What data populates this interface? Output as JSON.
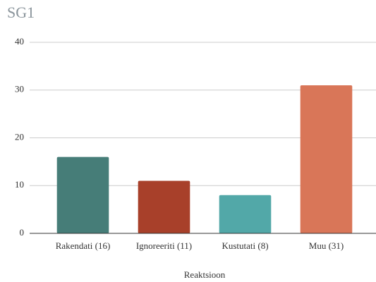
{
  "chart_data": {
    "type": "bar",
    "title": "SG1",
    "x_label": "Reaktsioon",
    "categories": [
      "Rakendati (16)",
      "Ignoreeriti (11)",
      "Kustutati (8)",
      "Muu (31)"
    ],
    "values": [
      16,
      11,
      8,
      31
    ],
    "colors": [
      "#467d78",
      "#a8402a",
      "#52a8a8",
      "#d97658"
    ],
    "ylim": [
      0,
      40
    ],
    "yticks": [
      0,
      10,
      20,
      30,
      40
    ],
    "grid": true
  }
}
